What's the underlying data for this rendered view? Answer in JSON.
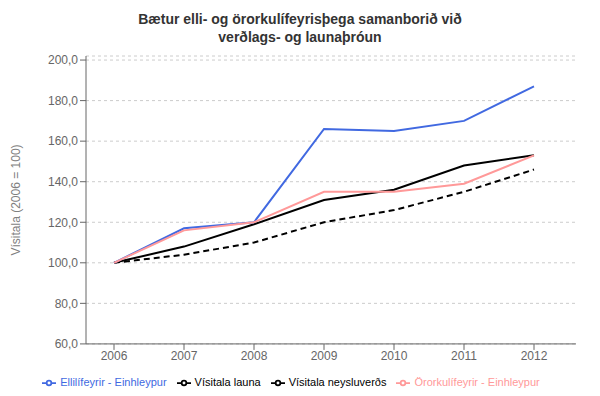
{
  "chart_data": {
    "type": "line",
    "title": "Bætur elli- og örorkulífeyrisþega samanborið við\nverðlags- og launaþróun",
    "y_label": "Vísitala (2006 = 100)",
    "x": [
      2006,
      2007,
      2008,
      2009,
      2010,
      2011,
      2012
    ],
    "xlim": [
      2005.6,
      2012.6
    ],
    "xticks": [
      2006,
      2007,
      2008,
      2009,
      2010,
      2011,
      2012
    ],
    "ylim": [
      60.0,
      202.0
    ],
    "yticks": [
      {
        "value": 60,
        "label": "60,0"
      },
      {
        "value": 80,
        "label": "80,0"
      },
      {
        "value": 100,
        "label": "100,0"
      },
      {
        "value": 120,
        "label": "120,0"
      },
      {
        "value": 140,
        "label": "140,0"
      },
      {
        "value": 160,
        "label": "160,0"
      },
      {
        "value": 180,
        "label": "180,0"
      },
      {
        "value": 200,
        "label": "200,0"
      }
    ],
    "grid": true,
    "legend": "bottom",
    "series": [
      {
        "name": "Vísitala neysluverðs",
        "color": "#000000",
        "line_style": "solid",
        "values": [
          100.0,
          108.0,
          119.0,
          131.0,
          136.0,
          148.0,
          153.0
        ]
      },
      {
        "name": "Vísitala launa",
        "color": "#000000",
        "line_style": "dashed",
        "values": [
          100.0,
          104.0,
          110.0,
          120.0,
          126.0,
          135.0,
          146.0
        ]
      },
      {
        "name": "Ellilífeyrir - Einhleypur",
        "color": "#4169E1",
        "line_style": "solid",
        "values": [
          100.0,
          117.0,
          120.0,
          166.0,
          165.0,
          170.0,
          187.0
        ]
      },
      {
        "name": "Örorkulífeyrir - Einhleypur",
        "color": "#FF9999",
        "line_style": "solid",
        "values": [
          100.0,
          116.0,
          120.0,
          135.0,
          135.0,
          139.0,
          153.0
        ]
      }
    ]
  }
}
